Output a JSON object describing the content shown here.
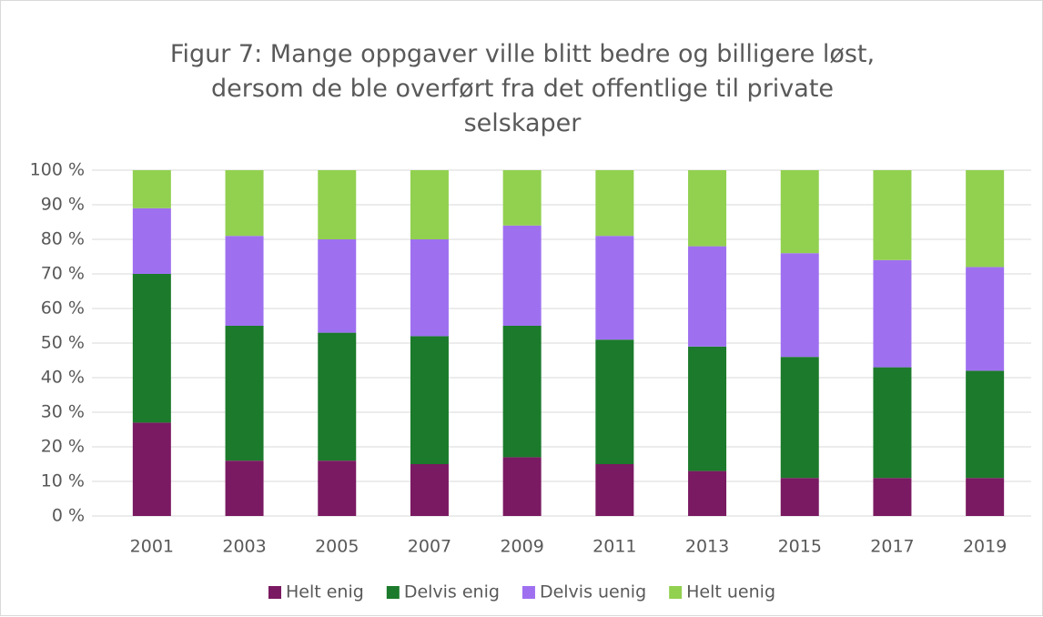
{
  "chart_data": {
    "type": "stacked_bar",
    "title": "Figur 7: Mange oppgaver ville blitt bedre og billigere løst, dersom de ble overført fra det offentlige til private selskaper",
    "categories": [
      "2001",
      "2003",
      "2005",
      "2007",
      "2009",
      "2011",
      "2013",
      "2015",
      "2017",
      "2019"
    ],
    "series": [
      {
        "name": "Helt enig",
        "color": "#7a1a62",
        "values": [
          27,
          16,
          16,
          15,
          17,
          15,
          13,
          11,
          11,
          11
        ]
      },
      {
        "name": "Delvis enig",
        "color": "#1b7a2b",
        "values": [
          43,
          39,
          37,
          37,
          38,
          36,
          36,
          35,
          32,
          31
        ]
      },
      {
        "name": "Delvis uenig",
        "color": "#9e70f0",
        "values": [
          19,
          26,
          27,
          28,
          29,
          30,
          29,
          30,
          31,
          30
        ]
      },
      {
        "name": "Helt uenig",
        "color": "#92d050",
        "values": [
          11,
          19,
          20,
          20,
          16,
          19,
          22,
          24,
          26,
          28
        ]
      }
    ],
    "ylim": [
      0,
      100
    ],
    "yticks": [
      {
        "value": 0,
        "label": "0 %"
      },
      {
        "value": 10,
        "label": "10 %"
      },
      {
        "value": 20,
        "label": "20 %"
      },
      {
        "value": 30,
        "label": "30 %"
      },
      {
        "value": 40,
        "label": "40 %"
      },
      {
        "value": 50,
        "label": "50 %"
      },
      {
        "value": 60,
        "label": "60 %"
      },
      {
        "value": 70,
        "label": "70 %"
      },
      {
        "value": 80,
        "label": "80 %"
      },
      {
        "value": 90,
        "label": "90 %"
      },
      {
        "value": 100,
        "label": "100 %"
      }
    ],
    "grid": true,
    "legend": "bottom"
  }
}
